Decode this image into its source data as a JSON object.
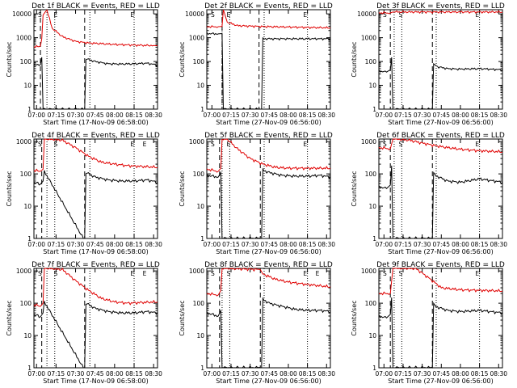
{
  "figure": {
    "background": "#ffffff",
    "events_color": "#000000",
    "lld_color": "#e00000"
  },
  "chart_data": [
    {
      "type": "line",
      "title": "Det 1f BLACK = Events, RED = LLD",
      "xlabel": "Start Time (17-Nov-09 06:58:00)",
      "ylabel": "Counts/sec",
      "xticks": [
        "07:00",
        "07:15",
        "07:30",
        "07:45",
        "08:00",
        "08:15",
        "08:30"
      ],
      "yticks": [
        "1",
        "10",
        "100",
        "1000",
        "10000"
      ],
      "yscale": "log",
      "xlim": [
        "06:58",
        "08:33"
      ],
      "ylim": [
        1,
        15000
      ],
      "flags": [
        "S",
        "E",
        "E"
      ],
      "series": [
        {
          "x": [
            "06:58",
            "07:02",
            "07:03",
            "07:04",
            "07:05",
            "07:08",
            "07:12",
            "07:20",
            "07:30",
            "07:40",
            "07:50",
            "08:00",
            "08:10",
            "08:20",
            "08:30",
            "08:33"
          ],
          "values": [
            420,
            420,
            450,
            900,
            9000,
            15000,
            2500,
            1100,
            700,
            600,
            560,
            520,
            500,
            480,
            470,
            460
          ]
        },
        {
          "x": [
            "06:58",
            "07:02",
            "07:03",
            "07:04",
            "07:05",
            "07:36",
            "07:37",
            "07:38",
            "07:45",
            "07:55",
            "08:05",
            "08:15",
            "08:25",
            "08:33"
          ],
          "values": [
            75,
            68,
            75,
            150,
            1,
            1,
            1,
            130,
            100,
            80,
            78,
            80,
            85,
            70
          ]
        }
      ]
    },
    {
      "type": "line",
      "title": "Det 2f BLACK = Events, RED = LLD",
      "xlabel": "Start Time (27-Nov-09 06:56:00)",
      "ylabel": "Counts/sec",
      "xticks": [
        "07:00",
        "07:15",
        "07:30",
        "07:45",
        "08:00",
        "08:15",
        "08:30"
      ],
      "yticks": [
        "1",
        "10",
        "100",
        "1000",
        "10000"
      ],
      "yscale": "log",
      "xlim": [
        "06:56",
        "08:33"
      ],
      "ylim": [
        1,
        15000
      ],
      "flags": [
        "S",
        "E",
        "E"
      ],
      "series": [
        {
          "x": [
            "06:56",
            "07:05",
            "07:08",
            "07:09",
            "07:12",
            "07:20",
            "07:35",
            "07:45",
            "08:00",
            "08:15",
            "08:33"
          ],
          "values": [
            2900,
            2900,
            3000,
            15000,
            4500,
            3200,
            3000,
            2900,
            2800,
            2700,
            2600
          ]
        },
        {
          "x": [
            "06:56",
            "07:05",
            "07:08",
            "07:09",
            "07:10",
            "07:38",
            "07:39",
            "07:40",
            "07:50",
            "08:00",
            "08:15",
            "08:33"
          ],
          "values": [
            1500,
            1450,
            1500,
            1,
            1,
            1,
            1,
            900,
            900,
            900,
            900,
            900
          ]
        }
      ]
    },
    {
      "type": "line",
      "title": "Det 3f BLACK = Events, RED = LLD",
      "xlabel": "Start Time (27-Nov-09 06:56:00)",
      "ylabel": "Counts/sec",
      "xticks": [
        "07:00",
        "07:15",
        "07:30",
        "07:45",
        "08:00",
        "08:15",
        "08:30"
      ],
      "yticks": [
        "1",
        "10",
        "100",
        "1000",
        "10000"
      ],
      "yscale": "log",
      "xlim": [
        "06:56",
        "08:33"
      ],
      "ylim": [
        1,
        15000
      ],
      "flags": [
        "S",
        "S",
        "E"
      ],
      "series": [
        {
          "x": [
            "06:56",
            "07:05",
            "07:07",
            "07:10",
            "07:20",
            "07:30",
            "07:45",
            "08:00",
            "08:15",
            "08:33"
          ],
          "values": [
            11000,
            11000,
            12000,
            12000,
            12000,
            12000,
            12000,
            12000,
            12000,
            12000
          ]
        },
        {
          "x": [
            "06:56",
            "07:02",
            "07:05",
            "07:06",
            "07:07",
            "07:09",
            "07:38",
            "07:39",
            "07:42",
            "07:50",
            "08:00",
            "08:15",
            "08:33"
          ],
          "values": [
            40,
            36,
            45,
            150,
            1,
            1,
            1,
            80,
            60,
            50,
            48,
            50,
            45
          ]
        }
      ]
    },
    {
      "type": "line",
      "title": "Det 4f BLACK = Events, RED = LLD",
      "xlabel": "Start Time (17-Nov-09 06:58:00)",
      "ylabel": "Counts/sec",
      "xticks": [
        "07:00",
        "07:15",
        "07:30",
        "07:45",
        "08:00",
        "08:15",
        "08:30"
      ],
      "yticks": [
        "1",
        "10",
        "100",
        "1000"
      ],
      "yscale": "log",
      "xlim": [
        "06:58",
        "08:33"
      ],
      "ylim": [
        1,
        1200
      ],
      "flags": [
        "S",
        "S",
        "E",
        "E"
      ],
      "series": [
        {
          "x": [
            "06:58",
            "07:03",
            "07:05",
            "07:06",
            "07:10",
            "07:20",
            "07:30",
            "07:40",
            "07:50",
            "08:00",
            "08:10",
            "08:20",
            "08:33"
          ],
          "values": [
            130,
            120,
            140,
            1200,
            1200,
            1100,
            650,
            350,
            230,
            200,
            180,
            170,
            160
          ]
        },
        {
          "x": [
            "06:58",
            "07:03",
            "07:05",
            "07:06",
            "07:36",
            "07:37",
            "07:38",
            "07:45",
            "07:55",
            "08:05",
            "08:15",
            "08:25",
            "08:33"
          ],
          "values": [
            55,
            48,
            60,
            120,
            1,
            1,
            110,
            80,
            65,
            60,
            60,
            65,
            55
          ]
        }
      ]
    },
    {
      "type": "line",
      "title": "Det 5f BLACK = Events, RED = LLD",
      "xlabel": "Start Time (27-Nov-09 06:56:00)",
      "ylabel": "Counts/sec",
      "xticks": [
        "07:00",
        "07:15",
        "07:30",
        "07:45",
        "08:00",
        "08:15",
        "08:30"
      ],
      "yticks": [
        "1",
        "10",
        "100",
        "1000"
      ],
      "yscale": "log",
      "xlim": [
        "06:56",
        "08:33"
      ],
      "ylim": [
        1,
        1200
      ],
      "flags": [
        "S",
        "E",
        "E"
      ],
      "series": [
        {
          "x": [
            "06:56",
            "07:05",
            "07:07",
            "07:08",
            "07:12",
            "07:20",
            "07:30",
            "07:40",
            "07:50",
            "08:00",
            "08:15",
            "08:33"
          ],
          "values": [
            140,
            120,
            150,
            1200,
            1200,
            600,
            300,
            200,
            160,
            150,
            150,
            150
          ]
        },
        {
          "x": [
            "06:56",
            "07:05",
            "07:07",
            "07:08",
            "07:38",
            "07:39",
            "07:40",
            "07:45",
            "07:55",
            "08:05",
            "08:15",
            "08:25",
            "08:33"
          ],
          "values": [
            90,
            80,
            110,
            1,
            1,
            1,
            130,
            110,
            90,
            85,
            85,
            90,
            80
          ]
        }
      ]
    },
    {
      "type": "line",
      "title": "Det 6f BLACK = Events, RED = LLD",
      "xlabel": "Start Time (27-Nov-09 06:56:00)",
      "ylabel": "Counts/sec",
      "xticks": [
        "07:00",
        "07:15",
        "07:30",
        "07:45",
        "08:00",
        "08:15",
        "08:30"
      ],
      "yticks": [
        "1",
        "10",
        "100",
        "1000"
      ],
      "yscale": "log",
      "xlim": [
        "06:56",
        "08:33"
      ],
      "ylim": [
        1,
        1200
      ],
      "flags": [
        "S",
        "S",
        "E"
      ],
      "series": [
        {
          "x": [
            "06:56",
            "07:05",
            "07:07",
            "07:10",
            "07:20",
            "07:30",
            "07:40",
            "07:50",
            "08:00",
            "08:15",
            "08:33"
          ],
          "values": [
            650,
            600,
            1200,
            1200,
            1100,
            900,
            750,
            650,
            580,
            520,
            480
          ]
        },
        {
          "x": [
            "06:56",
            "07:02",
            "07:05",
            "07:06",
            "07:07",
            "07:09",
            "07:38",
            "07:39",
            "07:40",
            "07:50",
            "08:00",
            "08:15",
            "08:33"
          ],
          "values": [
            40,
            35,
            45,
            180,
            1,
            1,
            1,
            110,
            90,
            60,
            55,
            70,
            55
          ]
        }
      ]
    },
    {
      "type": "line",
      "title": "Det 7f BLACK = Events, RED = LLD",
      "xlabel": "Start Time (17-Nov-09 06:58:00)",
      "ylabel": "Counts/sec",
      "xticks": [
        "07:00",
        "07:15",
        "07:30",
        "07:45",
        "08:00",
        "08:15",
        "08:30"
      ],
      "yticks": [
        "1",
        "10",
        "100",
        "1000"
      ],
      "yscale": "log",
      "xlim": [
        "06:58",
        "08:33"
      ],
      "ylim": [
        1,
        1200
      ],
      "flags": [
        "S",
        "S",
        "E",
        "E"
      ],
      "series": [
        {
          "x": [
            "06:58",
            "07:03",
            "07:05",
            "07:06",
            "07:10",
            "07:20",
            "07:30",
            "07:40",
            "07:50",
            "08:00",
            "08:10",
            "08:20",
            "08:33"
          ],
          "values": [
            90,
            80,
            100,
            1200,
            1200,
            1100,
            500,
            250,
            140,
            110,
            100,
            105,
            110
          ]
        },
        {
          "x": [
            "06:58",
            "07:03",
            "07:05",
            "07:06",
            "07:36",
            "07:37",
            "07:38",
            "07:45",
            "07:55",
            "08:05",
            "08:15",
            "08:25",
            "08:33"
          ],
          "values": [
            45,
            38,
            50,
            110,
            1,
            1,
            100,
            70,
            55,
            50,
            50,
            55,
            50
          ]
        }
      ]
    },
    {
      "type": "line",
      "title": "Det 8f BLACK = Events, RED = LLD",
      "xlabel": "Start Time (27-Nov-09 06:56:00)",
      "ylabel": "Counts/sec",
      "xticks": [
        "07:00",
        "07:15",
        "07:30",
        "07:45",
        "08:00",
        "08:15",
        "08:30"
      ],
      "yticks": [
        "1",
        "10",
        "100",
        "1000"
      ],
      "yscale": "log",
      "xlim": [
        "06:56",
        "08:33"
      ],
      "ylim": [
        1,
        1200
      ],
      "flags": [
        "S",
        "S",
        "E",
        "E"
      ],
      "series": [
        {
          "x": [
            "06:56",
            "07:05",
            "07:07",
            "07:08",
            "07:12",
            "07:38",
            "07:40",
            "07:50",
            "08:00",
            "08:15",
            "08:33"
          ],
          "values": [
            200,
            180,
            250,
            1200,
            1200,
            1100,
            800,
            550,
            450,
            380,
            320
          ]
        },
        {
          "x": [
            "06:56",
            "07:05",
            "07:07",
            "07:08",
            "07:38",
            "07:39",
            "07:40",
            "07:45",
            "07:55",
            "08:05",
            "08:15",
            "08:25",
            "08:33"
          ],
          "values": [
            50,
            40,
            60,
            1,
            1,
            1,
            130,
            100,
            80,
            65,
            60,
            60,
            55
          ]
        }
      ]
    },
    {
      "type": "line",
      "title": "Det 9f BLACK = Events, RED = LLD",
      "xlabel": "Start Time (27-Nov-09 06:56:00)",
      "ylabel": "Counts/sec",
      "xticks": [
        "07:00",
        "07:15",
        "07:30",
        "07:45",
        "08:00",
        "08:15",
        "08:30"
      ],
      "yticks": [
        "1",
        "10",
        "100",
        "1000"
      ],
      "yscale": "log",
      "xlim": [
        "06:56",
        "08:33"
      ],
      "ylim": [
        1,
        1200
      ],
      "flags": [
        "S",
        "S",
        "E"
      ],
      "series": [
        {
          "x": [
            "06:56",
            "07:05",
            "07:07",
            "07:10",
            "07:25",
            "07:38",
            "07:45",
            "08:00",
            "08:15",
            "08:33"
          ],
          "values": [
            200,
            200,
            1200,
            1200,
            1200,
            500,
            300,
            260,
            250,
            240
          ]
        },
        {
          "x": [
            "06:56",
            "07:02",
            "07:05",
            "07:06",
            "07:07",
            "07:09",
            "07:38",
            "07:39",
            "07:40",
            "07:50",
            "08:00",
            "08:15",
            "08:33"
          ],
          "values": [
            40,
            35,
            45,
            150,
            1,
            1,
            1,
            100,
            80,
            60,
            55,
            60,
            50
          ]
        }
      ]
    }
  ]
}
